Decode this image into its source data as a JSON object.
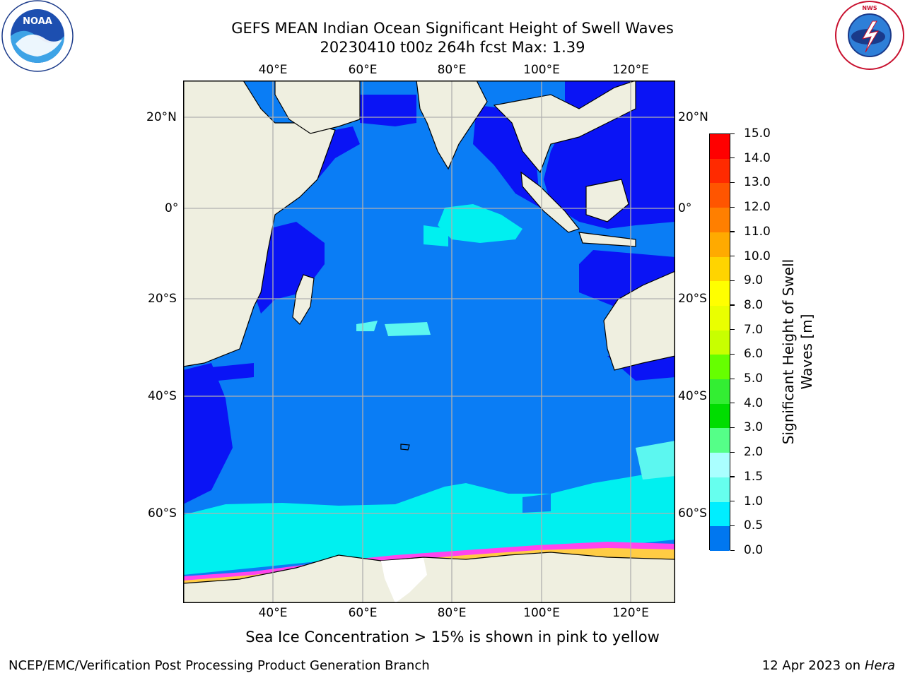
{
  "header": {
    "title_line1": "GEFS MEAN Indian Ocean Significant Height of Swell Waves",
    "title_line2": "20230410 t00z 264h fcst   Max: 1.39"
  },
  "logos": {
    "noaa_text": "NOAA",
    "noaa_ring": "NATIONAL OCEANIC AND ATMOSPHERIC ADMINISTRATION · U.S. DEPARTMENT OF COMMERCE",
    "nws_ring": "NATIONAL WEATHER SERVICE"
  },
  "map": {
    "lon_ticks": [
      "40°E",
      "60°E",
      "80°E",
      "100°E",
      "120°E"
    ],
    "lat_ticks": [
      "20°N",
      "0°",
      "20°S",
      "40°S",
      "60°S"
    ],
    "colors": {
      "ocean": "#0a7df5",
      "deep_blue": "#0a14f5",
      "cyan": "#00f0f0",
      "light_cyan": "#5cf7f0",
      "land": "#efefe0",
      "ice_pink": "#ff44ee",
      "ice_yellow": "#ffcc44",
      "grid": "#b0b0b0"
    }
  },
  "colorbar": {
    "labels": [
      "15.0",
      "14.0",
      "13.0",
      "12.0",
      "11.0",
      "10.0",
      "9.0",
      "8.0",
      "7.0",
      "6.0",
      "5.0",
      "4.0",
      "3.0",
      "2.0",
      "1.5",
      "1.0",
      "0.5",
      "0.0"
    ],
    "title_line1": "Significant Height of Swell",
    "title_line2": "Waves [m]",
    "colors": [
      "#ff0000",
      "#ff2a00",
      "#ff5500",
      "#ff7f00",
      "#ffaa00",
      "#ffd400",
      "#ffff00",
      "#eaff00",
      "#c8ff00",
      "#66ff00",
      "#33ee33",
      "#00dd00",
      "#55ff88",
      "#aaffff",
      "#66ffee",
      "#00eeff",
      "#0077f0",
      "#0a00f0"
    ]
  },
  "note": "Sea Ice Concentration > 15% is shown in pink to yellow",
  "footer": {
    "left": "NCEP/EMC/Verification Post Processing Product Generation Branch",
    "right_prefix": "12 Apr 2023 on ",
    "right_host": "Hera"
  }
}
